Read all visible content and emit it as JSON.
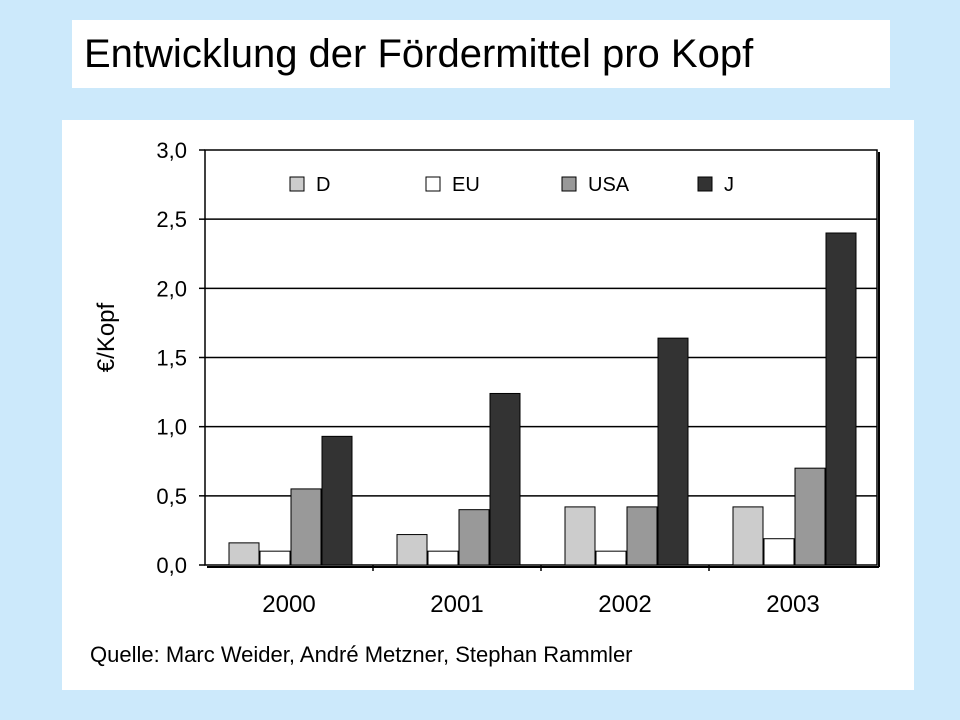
{
  "title": "Entwicklung der Fördermittel pro Kopf",
  "source": "Quelle: Marc Weider, André Metzner, Stephan Rammler",
  "chart_data": {
    "type": "bar",
    "title": "",
    "xlabel": "",
    "ylabel": "€/Kopf",
    "categories": [
      "2000",
      "2001",
      "2002",
      "2003"
    ],
    "ylim": [
      0,
      3.0
    ],
    "yticks": [
      "0,0",
      "0,5",
      "1,0",
      "1,5",
      "2,0",
      "2,5",
      "3,0"
    ],
    "grid": true,
    "legend_position": "top",
    "series": [
      {
        "name": "D",
        "color": "#cccccc",
        "values": [
          0.16,
          0.22,
          0.42,
          0.42
        ]
      },
      {
        "name": "EU",
        "color": "#ffffff",
        "values": [
          0.1,
          0.1,
          0.1,
          0.19
        ]
      },
      {
        "name": "USA",
        "color": "#999999",
        "values": [
          0.55,
          0.4,
          0.42,
          0.7
        ]
      },
      {
        "name": "J",
        "color": "#333333",
        "values": [
          0.93,
          1.24,
          1.64,
          2.4
        ]
      }
    ]
  }
}
